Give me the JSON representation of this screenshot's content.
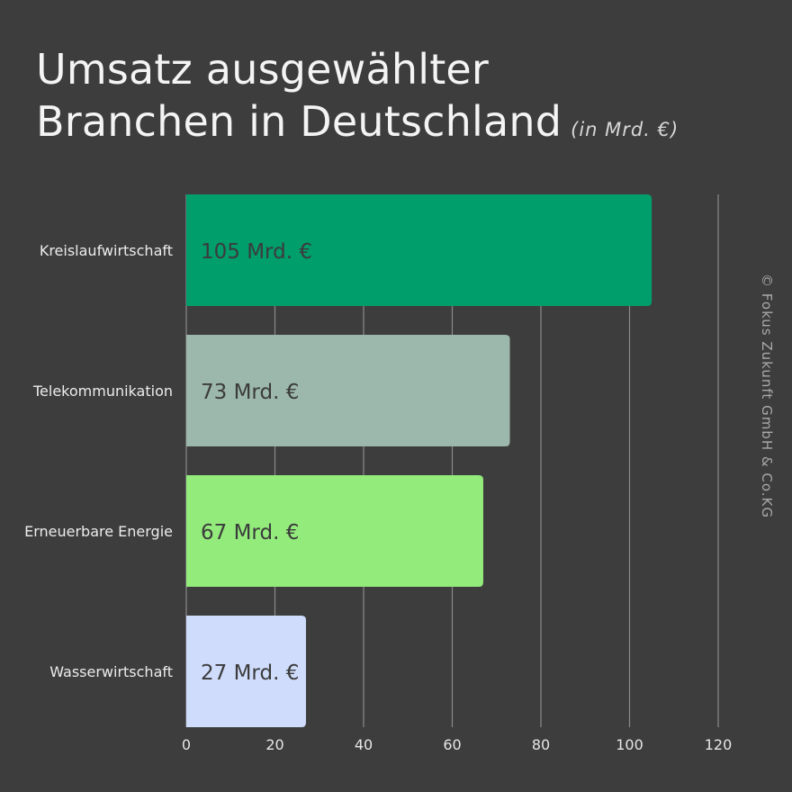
{
  "title_line1": "Umsatz ausgewählter",
  "title_line2": "Branchen in Deutschland",
  "subtitle": "(in Mrd. €)",
  "credit": "© Fokus Zukunft GmbH & Co.KG",
  "chart_data": {
    "type": "bar",
    "orientation": "horizontal",
    "categories": [
      "Kreislaufwirtschaft",
      "Telekommunikation",
      "Erneuerbare Energie",
      "Wasserwirtschaft"
    ],
    "values": [
      105,
      73,
      67,
      27
    ],
    "value_labels": [
      "105 Mrd. €",
      "73 Mrd. €",
      "67 Mrd. €",
      "27 Mrd. €"
    ],
    "colors": [
      "#009e6b",
      "#9cb8ad",
      "#93eb7c",
      "#cfdcfc"
    ],
    "xlim": [
      0,
      120
    ],
    "xticks": [
      0,
      20,
      40,
      60,
      80,
      100,
      120
    ],
    "grid": true,
    "gridline_color": "#8a8a8a"
  }
}
